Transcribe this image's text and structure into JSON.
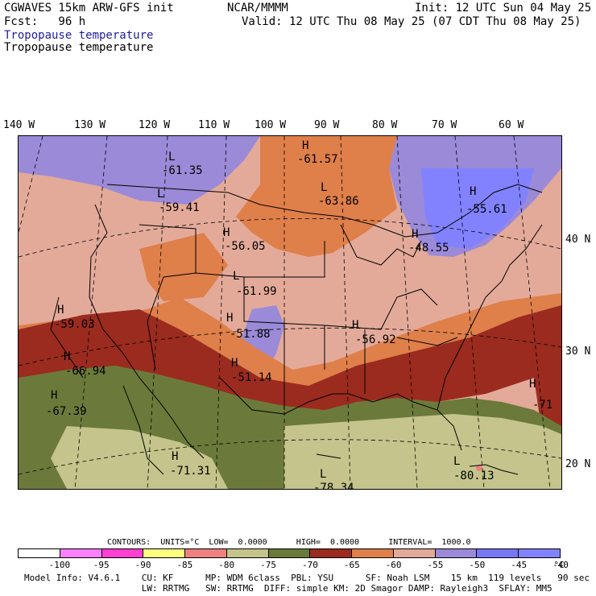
{
  "header": {
    "model": "CGWAVES 15km ARW-GFS init",
    "fcst": "Fcst:   96 h",
    "center": "NCAR/MMMM",
    "init": "Init: 12 UTC Sun 04 May 25",
    "valid": "Valid: 12 UTC Thu 08 May 25 (07 CDT Thu 08 May 25)",
    "field1": "Tropopause temperature",
    "field2": "Tropopause temperature"
  },
  "longitudes": [
    "140 W",
    "130 W",
    "120 W",
    "110 W",
    "100 W",
    "90 W",
    "80 W",
    "70 W",
    "60 W"
  ],
  "latitudes": [
    "40 N",
    "30 N",
    "20 N"
  ],
  "centers": [
    {
      "type": "L",
      "value": "-61.35"
    },
    {
      "type": "H",
      "value": "-61.57"
    },
    {
      "type": "L",
      "value": "-59.41"
    },
    {
      "type": "L",
      "value": "-63.86"
    },
    {
      "type": "H",
      "value": "-55.61"
    },
    {
      "type": "H",
      "value": "-56.05"
    },
    {
      "type": "H",
      "value": "-48.55"
    },
    {
      "type": "L",
      "value": "-61.99"
    },
    {
      "type": "H",
      "value": "-59.03"
    },
    {
      "type": "H",
      "value": "-51.88"
    },
    {
      "type": "H",
      "value": "-56.92"
    },
    {
      "type": "H",
      "value": "-66.94"
    },
    {
      "type": "H",
      "value": "-51.14"
    },
    {
      "type": "H",
      "value": "-67.39"
    },
    {
      "type": "H",
      "value": "-71"
    },
    {
      "type": "H",
      "value": "-71.31"
    },
    {
      "type": "L",
      "value": "-78.34"
    },
    {
      "type": "L",
      "value": "-80.13"
    }
  ],
  "contours": {
    "text": "CONTOURS:  UNITS=°C  LOW=  0.0000      HIGH=  0.0000      INTERVAL=  1000.0"
  },
  "colorbar": {
    "colors": [
      "#ffffff",
      "#ff80ff",
      "#ff40d0",
      "#ffff80",
      "#f08080",
      "#c4c48c",
      "#6b7a3a",
      "#9b2b1f",
      "#df7f4a",
      "#e3aa9a",
      "#9a8ad8",
      "#7878f4",
      "#8282ff"
    ],
    "ticks": [
      "-100",
      "-95",
      "-90",
      "-85",
      "-80",
      "-75",
      "-70",
      "-65",
      "-60",
      "-55",
      "-50",
      "-45",
      "-40",
      "°C"
    ]
  },
  "footer": {
    "line1": "Model Info: V4.6.1    CU: KF      MP: WDM 6class  PBL: YSU      SF: Noah LSM    15 km  119 levels   90 sec",
    "line2": "                      LW: RRTMG   SW: RRTMG  DIFF: simple KM: 2D Smagor DAMP: Rayleigh3  SFLAY: MM5"
  }
}
